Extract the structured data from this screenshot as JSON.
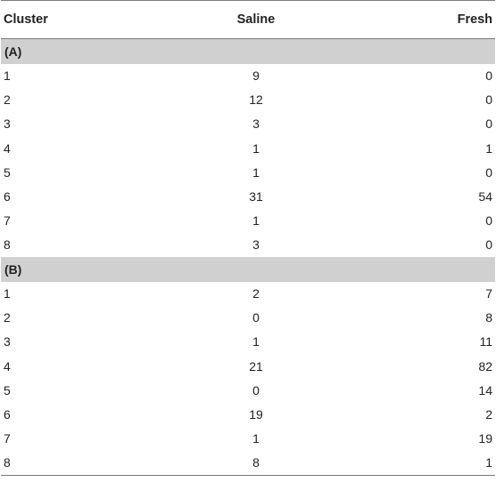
{
  "header": {
    "col1": "Cluster",
    "col2": "Saline",
    "col3": "Fresh"
  },
  "sections": [
    {
      "label": "(A)",
      "rows": [
        {
          "cluster": "1",
          "saline": "9",
          "fresh": "0"
        },
        {
          "cluster": "2",
          "saline": "12",
          "fresh": "0"
        },
        {
          "cluster": "3",
          "saline": "3",
          "fresh": "0"
        },
        {
          "cluster": "4",
          "saline": "1",
          "fresh": "1"
        },
        {
          "cluster": "5",
          "saline": "1",
          "fresh": "0"
        },
        {
          "cluster": "6",
          "saline": "31",
          "fresh": "54"
        },
        {
          "cluster": "7",
          "saline": "1",
          "fresh": "0"
        },
        {
          "cluster": "8",
          "saline": "3",
          "fresh": "0"
        }
      ]
    },
    {
      "label": "(B)",
      "rows": [
        {
          "cluster": "1",
          "saline": "2",
          "fresh": "7"
        },
        {
          "cluster": "2",
          "saline": "0",
          "fresh": "8"
        },
        {
          "cluster": "3",
          "saline": "1",
          "fresh": "11"
        },
        {
          "cluster": "4",
          "saline": "21",
          "fresh": "82"
        },
        {
          "cluster": "5",
          "saline": "0",
          "fresh": "14"
        },
        {
          "cluster": "6",
          "saline": "19",
          "fresh": "2"
        },
        {
          "cluster": "7",
          "saline": "1",
          "fresh": "19"
        },
        {
          "cluster": "8",
          "saline": "8",
          "fresh": "1"
        }
      ]
    }
  ]
}
